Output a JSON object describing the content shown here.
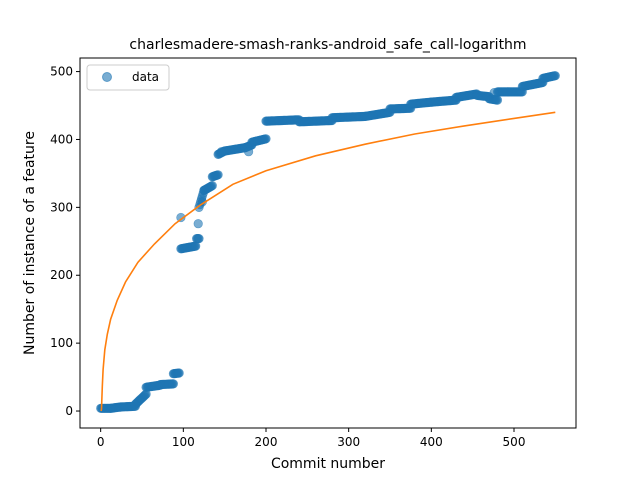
{
  "chart_data": {
    "type": "scatter",
    "title": "charlesmadere-smash-ranks-android_safe_call-logarithm",
    "xlabel": "Commit number",
    "ylabel": "Number of instance of a feature",
    "xlim": [
      -25,
      575
    ],
    "ylim": [
      -25,
      520
    ],
    "xticks": [
      0,
      100,
      200,
      300,
      400,
      500
    ],
    "yticks": [
      0,
      100,
      200,
      300,
      400,
      500
    ],
    "grid": false,
    "legend": {
      "position": "top-left",
      "entries": [
        "data"
      ]
    },
    "colors": {
      "data": "#1f77b4",
      "fit": "#ff7f0e"
    },
    "series": [
      {
        "name": "data",
        "kind": "scatter",
        "segments": [
          {
            "x0": 0,
            "x1": 12,
            "y0": 4,
            "y1": 4
          },
          {
            "x0": 12,
            "x1": 24,
            "y0": 4,
            "y1": 6
          },
          {
            "x0": 24,
            "x1": 42,
            "y0": 6,
            "y1": 7
          },
          {
            "x0": 42,
            "x1": 55,
            "y0": 10,
            "y1": 25
          },
          {
            "x0": 55,
            "x1": 72,
            "y0": 35,
            "y1": 38
          },
          {
            "x0": 72,
            "x1": 88,
            "y0": 39,
            "y1": 40
          },
          {
            "x0": 88,
            "x1": 95,
            "y0": 55,
            "y1": 56
          },
          {
            "x0": 97,
            "x1": 115,
            "y0": 239,
            "y1": 243
          },
          {
            "x0": 116,
            "x1": 119,
            "y0": 254,
            "y1": 254
          },
          {
            "x0": 119,
            "x1": 125,
            "y0": 300,
            "y1": 325
          },
          {
            "x0": 125,
            "x1": 135,
            "y0": 325,
            "y1": 332
          },
          {
            "x0": 135,
            "x1": 142,
            "y0": 345,
            "y1": 348
          },
          {
            "x0": 142,
            "x1": 150,
            "y0": 378,
            "y1": 383
          },
          {
            "x0": 150,
            "x1": 175,
            "y0": 383,
            "y1": 388
          },
          {
            "x0": 175,
            "x1": 183,
            "y0": 388,
            "y1": 392
          },
          {
            "x0": 183,
            "x1": 200,
            "y0": 396,
            "y1": 401
          },
          {
            "x0": 200,
            "x1": 240,
            "y0": 427,
            "y1": 429
          },
          {
            "x0": 240,
            "x1": 280,
            "y0": 426,
            "y1": 428
          },
          {
            "x0": 280,
            "x1": 320,
            "y0": 432,
            "y1": 434
          },
          {
            "x0": 320,
            "x1": 350,
            "y0": 434,
            "y1": 440
          },
          {
            "x0": 350,
            "x1": 375,
            "y0": 445,
            "y1": 446
          },
          {
            "x0": 375,
            "x1": 400,
            "y0": 452,
            "y1": 455
          },
          {
            "x0": 400,
            "x1": 430,
            "y0": 455,
            "y1": 458
          },
          {
            "x0": 430,
            "x1": 455,
            "y0": 462,
            "y1": 467
          },
          {
            "x0": 455,
            "x1": 470,
            "y0": 465,
            "y1": 463
          },
          {
            "x0": 470,
            "x1": 480,
            "y0": 460,
            "y1": 458
          },
          {
            "x0": 480,
            "x1": 510,
            "y0": 470,
            "y1": 470
          },
          {
            "x0": 510,
            "x1": 535,
            "y0": 478,
            "y1": 484
          },
          {
            "x0": 535,
            "x1": 550,
            "y0": 490,
            "y1": 494
          }
        ],
        "outliers": [
          {
            "x": 97,
            "y": 285
          },
          {
            "x": 118,
            "y": 276
          },
          {
            "x": 123,
            "y": 308
          },
          {
            "x": 146,
            "y": 382
          },
          {
            "x": 179,
            "y": 382
          },
          {
            "x": 476,
            "y": 469
          }
        ]
      },
      {
        "kind": "line",
        "function": "logarithm",
        "x": [
          0.5,
          1,
          2,
          3,
          5,
          8,
          12,
          20,
          30,
          45,
          65,
          90,
          120,
          160,
          200,
          260,
          320,
          380,
          440,
          500,
          550
        ],
        "y": [
          0,
          3,
          36,
          61,
          90,
          113,
          135,
          163,
          190,
          219,
          246,
          276,
          303,
          334,
          354,
          376,
          393,
          408,
          420,
          431,
          440
        ]
      }
    ]
  }
}
